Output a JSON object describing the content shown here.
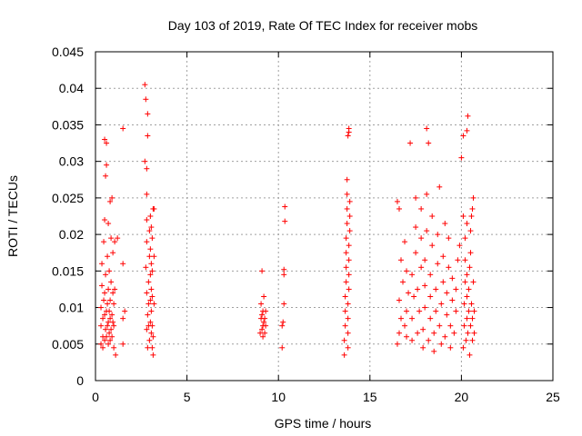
{
  "chart_data": {
    "type": "scatter",
    "title": "Day 103 of 2019, Rate Of TEC Index for receiver mobs",
    "xlabel": "GPS time / hours",
    "ylabel": "ROTI / TECUs",
    "xlim": [
      0,
      25
    ],
    "ylim": [
      0,
      0.045
    ],
    "x_ticks": [
      0,
      5,
      10,
      15,
      20,
      25
    ],
    "x_tick_labels": [
      "0",
      "5",
      "10",
      "15",
      "20",
      "25"
    ],
    "y_ticks": [
      0,
      0.005,
      0.01,
      0.015,
      0.02,
      0.025,
      0.03,
      0.035,
      0.04,
      0.045
    ],
    "y_tick_labels": [
      "0",
      "0.005",
      "0.01",
      "0.015",
      "0.02",
      "0.025",
      "0.03",
      "0.035",
      "0.04",
      "0.045"
    ],
    "grid": true,
    "marker": "+",
    "color": "#ff0000",
    "series": [
      {
        "name": "ROTI",
        "points": [
          [
            0.3,
            0.005
          ],
          [
            0.3,
            0.0075
          ],
          [
            0.3,
            0.01
          ],
          [
            0.35,
            0.013
          ],
          [
            0.35,
            0.016
          ],
          [
            0.4,
            0.0045
          ],
          [
            0.4,
            0.006
          ],
          [
            0.4,
            0.0085
          ],
          [
            0.45,
            0.011
          ],
          [
            0.45,
            0.019
          ],
          [
            0.5,
            0.0055
          ],
          [
            0.5,
            0.009
          ],
          [
            0.5,
            0.012
          ],
          [
            0.5,
            0.022
          ],
          [
            0.5,
            0.033
          ],
          [
            0.55,
            0.007
          ],
          [
            0.55,
            0.0145
          ],
          [
            0.55,
            0.028
          ],
          [
            0.6,
            0.006
          ],
          [
            0.6,
            0.0095
          ],
          [
            0.6,
            0.0295
          ],
          [
            0.6,
            0.0325
          ],
          [
            0.65,
            0.0075
          ],
          [
            0.65,
            0.0105
          ],
          [
            0.65,
            0.017
          ],
          [
            0.7,
            0.005
          ],
          [
            0.7,
            0.008
          ],
          [
            0.7,
            0.0125
          ],
          [
            0.7,
            0.0215
          ],
          [
            0.75,
            0.0065
          ],
          [
            0.75,
            0.0095
          ],
          [
            0.75,
            0.015
          ],
          [
            0.8,
            0.0055
          ],
          [
            0.8,
            0.0085
          ],
          [
            0.8,
            0.011
          ],
          [
            0.8,
            0.0245
          ],
          [
            0.85,
            0.007
          ],
          [
            0.85,
            0.0135
          ],
          [
            0.85,
            0.0195
          ],
          [
            0.9,
            0.006
          ],
          [
            0.9,
            0.009
          ],
          [
            0.9,
            0.025
          ],
          [
            0.95,
            0.008
          ],
          [
            0.95,
            0.012
          ],
          [
            0.95,
            0.0175
          ],
          [
            1.0,
            0.0045
          ],
          [
            1.0,
            0.0075
          ],
          [
            1.0,
            0.0105
          ],
          [
            1.05,
            0.0125
          ],
          [
            1.05,
            0.019
          ],
          [
            1.1,
            0.0035
          ],
          [
            1.2,
            0.0195
          ],
          [
            1.5,
            0.0345
          ],
          [
            1.5,
            0.005
          ],
          [
            1.5,
            0.0085
          ],
          [
            1.6,
            0.0095
          ],
          [
            1.5,
            0.016
          ],
          [
            2.7,
            0.0405
          ],
          [
            2.7,
            0.03
          ],
          [
            2.75,
            0.0385
          ],
          [
            2.8,
            0.029
          ],
          [
            2.8,
            0.0255
          ],
          [
            2.85,
            0.0365
          ],
          [
            2.85,
            0.0335
          ],
          [
            2.8,
            0.022
          ],
          [
            2.8,
            0.019
          ],
          [
            2.75,
            0.0155
          ],
          [
            2.8,
            0.012
          ],
          [
            2.85,
            0.009
          ],
          [
            2.8,
            0.007
          ],
          [
            2.85,
            0.0045
          ],
          [
            2.9,
            0.0105
          ],
          [
            2.9,
            0.0135
          ],
          [
            2.95,
            0.017
          ],
          [
            2.95,
            0.0205
          ],
          [
            2.9,
            0.0075
          ],
          [
            2.95,
            0.0055
          ],
          [
            3.0,
            0.008
          ],
          [
            3.0,
            0.011
          ],
          [
            3.0,
            0.0145
          ],
          [
            3.0,
            0.018
          ],
          [
            3.0,
            0.0225
          ],
          [
            3.05,
            0.0065
          ],
          [
            3.05,
            0.0095
          ],
          [
            3.05,
            0.0125
          ],
          [
            3.05,
            0.016
          ],
          [
            3.05,
            0.021
          ],
          [
            3.1,
            0.0045
          ],
          [
            3.1,
            0.0075
          ],
          [
            3.1,
            0.0115
          ],
          [
            3.1,
            0.015
          ],
          [
            3.1,
            0.0195
          ],
          [
            3.15,
            0.0035
          ],
          [
            3.15,
            0.006
          ],
          [
            3.15,
            0.0235
          ],
          [
            3.2,
            0.0105
          ],
          [
            3.2,
            0.017
          ],
          [
            3.2,
            0.0235
          ],
          [
            9.0,
            0.0065
          ],
          [
            9.05,
            0.0085
          ],
          [
            9.05,
            0.0105
          ],
          [
            9.1,
            0.007
          ],
          [
            9.1,
            0.009
          ],
          [
            9.1,
            0.015
          ],
          [
            9.15,
            0.006
          ],
          [
            9.15,
            0.0075
          ],
          [
            9.15,
            0.0095
          ],
          [
            9.2,
            0.008
          ],
          [
            9.2,
            0.0115
          ],
          [
            9.25,
            0.0065
          ],
          [
            9.25,
            0.0085
          ],
          [
            9.3,
            0.0075
          ],
          [
            9.3,
            0.0095
          ],
          [
            10.2,
            0.0045
          ],
          [
            10.2,
            0.0075
          ],
          [
            10.25,
            0.008
          ],
          [
            10.3,
            0.0105
          ],
          [
            10.3,
            0.0145
          ],
          [
            10.3,
            0.0152
          ],
          [
            10.35,
            0.0218
          ],
          [
            10.35,
            0.0238
          ],
          [
            13.6,
            0.0035
          ],
          [
            13.6,
            0.0055
          ],
          [
            13.65,
            0.0075
          ],
          [
            13.65,
            0.0095
          ],
          [
            13.65,
            0.0115
          ],
          [
            13.7,
            0.0135
          ],
          [
            13.7,
            0.0155
          ],
          [
            13.7,
            0.0175
          ],
          [
            13.7,
            0.0195
          ],
          [
            13.75,
            0.0215
          ],
          [
            13.75,
            0.0235
          ],
          [
            13.75,
            0.0255
          ],
          [
            13.75,
            0.0275
          ],
          [
            13.8,
            0.0045
          ],
          [
            13.8,
            0.0065
          ],
          [
            13.8,
            0.0085
          ],
          [
            13.8,
            0.0105
          ],
          [
            13.85,
            0.0125
          ],
          [
            13.85,
            0.0145
          ],
          [
            13.85,
            0.0165
          ],
          [
            13.85,
            0.0185
          ],
          [
            13.9,
            0.0205
          ],
          [
            13.9,
            0.0225
          ],
          [
            13.9,
            0.0245
          ],
          [
            13.8,
            0.0335
          ],
          [
            13.85,
            0.0345
          ],
          [
            13.85,
            0.034
          ],
          [
            16.5,
            0.0245
          ],
          [
            16.6,
            0.0235
          ],
          [
            16.5,
            0.005
          ],
          [
            16.6,
            0.0065
          ],
          [
            16.7,
            0.0085
          ],
          [
            16.6,
            0.011
          ],
          [
            16.8,
            0.0135
          ],
          [
            16.7,
            0.0165
          ],
          [
            16.9,
            0.019
          ],
          [
            16.9,
            0.0075
          ],
          [
            17.0,
            0.006
          ],
          [
            17.0,
            0.0095
          ],
          [
            17.1,
            0.012
          ],
          [
            17.0,
            0.015
          ],
          [
            17.2,
            0.0325
          ],
          [
            17.3,
            0.0055
          ],
          [
            17.3,
            0.0085
          ],
          [
            17.4,
            0.0115
          ],
          [
            17.3,
            0.0145
          ],
          [
            17.5,
            0.0175
          ],
          [
            17.5,
            0.021
          ],
          [
            17.5,
            0.025
          ],
          [
            17.6,
            0.0065
          ],
          [
            17.7,
            0.0095
          ],
          [
            17.6,
            0.0125
          ],
          [
            17.8,
            0.0155
          ],
          [
            17.8,
            0.0195
          ],
          [
            17.8,
            0.0235
          ],
          [
            17.9,
            0.0045
          ],
          [
            17.9,
            0.007
          ],
          [
            18.0,
            0.01
          ],
          [
            18.0,
            0.013
          ],
          [
            18.0,
            0.0165
          ],
          [
            18.1,
            0.0205
          ],
          [
            18.1,
            0.0255
          ],
          [
            18.1,
            0.0345
          ],
          [
            18.2,
            0.0325
          ],
          [
            18.2,
            0.0055
          ],
          [
            18.3,
            0.0085
          ],
          [
            18.3,
            0.0115
          ],
          [
            18.3,
            0.0145
          ],
          [
            18.4,
            0.0185
          ],
          [
            18.4,
            0.0225
          ],
          [
            18.5,
            0.004
          ],
          [
            18.5,
            0.0065
          ],
          [
            18.6,
            0.0095
          ],
          [
            18.6,
            0.0125
          ],
          [
            18.7,
            0.016
          ],
          [
            18.7,
            0.02
          ],
          [
            18.8,
            0.0265
          ],
          [
            18.8,
            0.0075
          ],
          [
            18.9,
            0.005
          ],
          [
            18.9,
            0.0105
          ],
          [
            19.0,
            0.0135
          ],
          [
            19.0,
            0.017
          ],
          [
            19.1,
            0.0215
          ],
          [
            19.1,
            0.006
          ],
          [
            19.2,
            0.009
          ],
          [
            19.2,
            0.012
          ],
          [
            19.3,
            0.0155
          ],
          [
            19.3,
            0.0195
          ],
          [
            19.4,
            0.0045
          ],
          [
            19.4,
            0.0075
          ],
          [
            19.5,
            0.011
          ],
          [
            19.5,
            0.014
          ],
          [
            19.6,
            0.0065
          ],
          [
            19.7,
            0.0095
          ],
          [
            19.7,
            0.0125
          ],
          [
            19.8,
            0.0165
          ],
          [
            19.9,
            0.0185
          ],
          [
            20.0,
            0.0305
          ],
          [
            20.1,
            0.0335
          ],
          [
            20.1,
            0.0225
          ],
          [
            20.1,
            0.0045
          ],
          [
            20.15,
            0.0075
          ],
          [
            20.15,
            0.0105
          ],
          [
            20.2,
            0.0135
          ],
          [
            20.2,
            0.0165
          ],
          [
            20.2,
            0.0195
          ],
          [
            20.25,
            0.0055
          ],
          [
            20.3,
            0.0085
          ],
          [
            20.3,
            0.0115
          ],
          [
            20.3,
            0.0145
          ],
          [
            20.3,
            0.0215
          ],
          [
            20.3,
            0.0342
          ],
          [
            20.35,
            0.0362
          ],
          [
            20.35,
            0.0065
          ],
          [
            20.4,
            0.0095
          ],
          [
            20.4,
            0.0125
          ],
          [
            20.45,
            0.0155
          ],
          [
            20.45,
            0.0035
          ],
          [
            20.5,
            0.0175
          ],
          [
            20.5,
            0.0205
          ],
          [
            20.5,
            0.0075
          ],
          [
            20.55,
            0.0105
          ],
          [
            20.55,
            0.0225
          ],
          [
            20.6,
            0.0055
          ],
          [
            20.6,
            0.0085
          ],
          [
            20.6,
            0.0235
          ],
          [
            20.65,
            0.0135
          ],
          [
            20.65,
            0.025
          ],
          [
            20.7,
            0.0095
          ],
          [
            20.7,
            0.0065
          ]
        ]
      }
    ]
  }
}
